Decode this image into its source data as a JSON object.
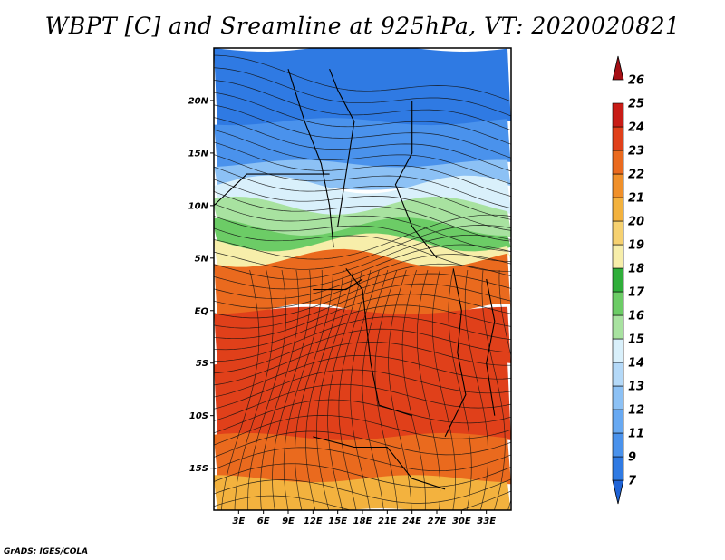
{
  "title": "WBPT [C] and Sreamline at 925hPa, VT: 2020020821",
  "credit": "GrADS: IGES/COLA",
  "map": {
    "lon_range": [
      0,
      36
    ],
    "lat_range": [
      -19,
      25
    ],
    "lat_ticks": [
      {
        "value": 20,
        "label": "20N"
      },
      {
        "value": 15,
        "label": "15N"
      },
      {
        "value": 10,
        "label": "10N"
      },
      {
        "value": 5,
        "label": "5N"
      },
      {
        "value": 0,
        "label": "EQ"
      },
      {
        "value": -5,
        "label": "5S"
      },
      {
        "value": -10,
        "label": "10S"
      },
      {
        "value": -15,
        "label": "15S"
      }
    ],
    "lon_ticks": [
      {
        "value": 3,
        "label": "3E"
      },
      {
        "value": 6,
        "label": "6E"
      },
      {
        "value": 9,
        "label": "9E"
      },
      {
        "value": 12,
        "label": "12E"
      },
      {
        "value": 15,
        "label": "15E"
      },
      {
        "value": 18,
        "label": "18E"
      },
      {
        "value": 21,
        "label": "21E"
      },
      {
        "value": 24,
        "label": "24E"
      },
      {
        "value": 27,
        "label": "27E"
      },
      {
        "value": 30,
        "label": "30E"
      },
      {
        "value": 33,
        "label": "33E"
      }
    ]
  },
  "colorbar": {
    "labels": [
      "7",
      "9",
      "11",
      "12",
      "13",
      "14",
      "15",
      "16",
      "17",
      "18",
      "19",
      "20",
      "21",
      "22",
      "23",
      "24",
      "25",
      "26"
    ],
    "colors": [
      "#1f63d6",
      "#2f7ae3",
      "#4a92ec",
      "#68a9f2",
      "#8cc1f5",
      "#b4d9f8",
      "#d9f0fb",
      "#a8e2a0",
      "#6ccc66",
      "#2fae3a",
      "#f7eeaa",
      "#f6d170",
      "#f3b23e",
      "#f0902a",
      "#ea6a1e",
      "#e0401a",
      "#c81c16",
      "#a50f15"
    ]
  },
  "field": {
    "bands": [
      {
        "lat": 25,
        "value": 9
      },
      {
        "lat": 18,
        "value": 11
      },
      {
        "lat": 14,
        "value": 13
      },
      {
        "lat": 12,
        "value": 15
      },
      {
        "lat": 10,
        "value": 16
      },
      {
        "lat": 8,
        "value": 17
      },
      {
        "lat": 6.5,
        "value": 19
      },
      {
        "lat": 5,
        "value": 23
      },
      {
        "lat": 0,
        "value": 24
      },
      {
        "lat": -5,
        "value": 24
      },
      {
        "lat": -12,
        "value": 23
      },
      {
        "lat": -16,
        "value": 21
      },
      {
        "lat": -19,
        "value": 19
      }
    ]
  }
}
